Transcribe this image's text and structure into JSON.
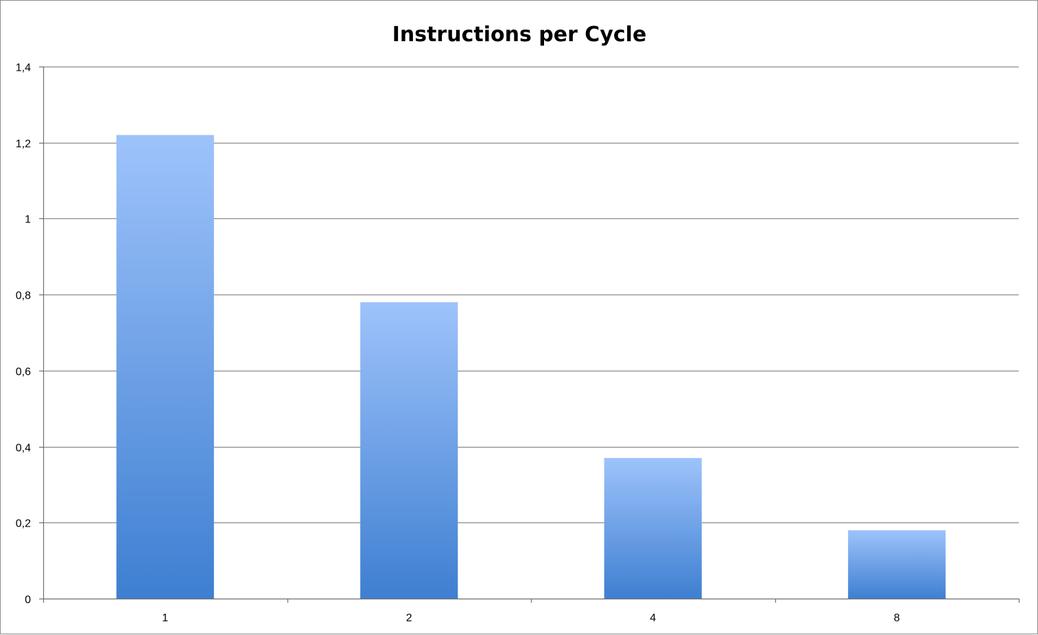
{
  "chart_data": {
    "type": "bar",
    "title": "Instructions per Cycle",
    "xlabel": "",
    "ylabel": "",
    "categories": [
      "1",
      "2",
      "4",
      "8"
    ],
    "values": [
      1.22,
      0.78,
      0.37,
      0.18
    ],
    "ylim": [
      0,
      1.4
    ],
    "yticks": [
      0,
      0.2,
      0.4,
      0.6,
      0.8,
      1,
      1.2,
      1.4
    ],
    "ytick_labels": [
      "0",
      "0,2",
      "0,4",
      "0,6",
      "0,8",
      "1",
      "1,2",
      "1,4"
    ],
    "grid": true,
    "legend": "none",
    "colors": {
      "bar_top": "#9ec3fb",
      "bar_bottom": "#3e7fd1",
      "grid": "#8c8c8c",
      "axis": "#6e6e6e"
    }
  }
}
